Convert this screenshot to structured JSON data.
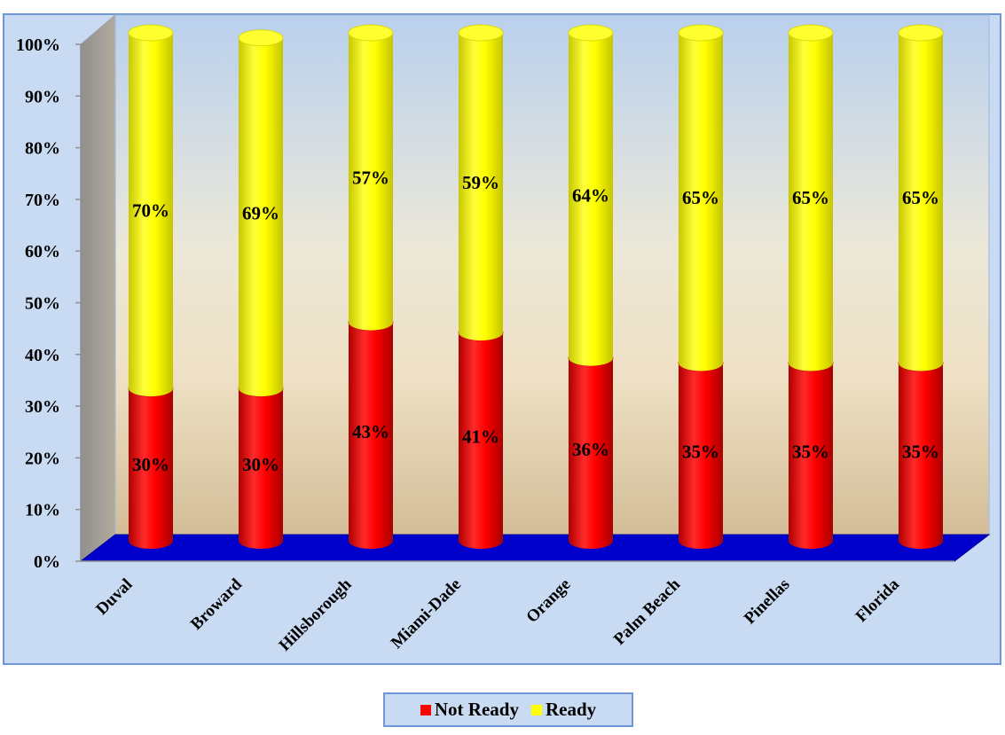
{
  "chart_data": {
    "type": "bar",
    "stacked": true,
    "three_d": true,
    "categories": [
      "Duval",
      "Broward",
      "Hillsborough",
      "Miami-Dade",
      "Orange",
      "Palm Beach",
      "Pinellas",
      "Florida"
    ],
    "series": [
      {
        "name": "Not Ready",
        "color": "#ff0000",
        "values": [
          30,
          30,
          43,
          41,
          36,
          35,
          35,
          35
        ],
        "labels": [
          "30%",
          "30%",
          "43%",
          "41%",
          "36%",
          "35%",
          "35%",
          "35%"
        ]
      },
      {
        "name": "Ready",
        "color": "#ffff00",
        "values": [
          70,
          69,
          57,
          59,
          64,
          65,
          65,
          65
        ],
        "labels": [
          "70%",
          "69%",
          "57%",
          "59%",
          "64%",
          "65%",
          "65%",
          "65%"
        ]
      }
    ],
    "y_ticks": [
      "0%",
      "10%",
      "20%",
      "30%",
      "40%",
      "50%",
      "60%",
      "70%",
      "80%",
      "90%",
      "100%"
    ],
    "ylim": [
      0,
      100
    ],
    "legend_position": "bottom",
    "floor_color": "#0000cc"
  }
}
